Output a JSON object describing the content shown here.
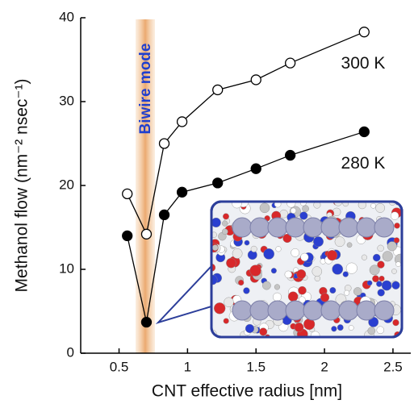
{
  "chart_data": {
    "type": "line",
    "x_label": "CNT effective radius [nm]",
    "y_label": "Methanol flow (nm⁻² nsec⁻¹)",
    "annotations": [
      "Biwire mode"
    ],
    "series": [
      {
        "name": "300 K",
        "color": "#000000",
        "marker": "open",
        "x": [
          0.56,
          0.7,
          0.83,
          0.96,
          1.22,
          1.5,
          1.75,
          2.29
        ],
        "values": [
          19,
          14.2,
          25,
          27.6,
          31.4,
          32.6,
          34.6,
          38.3
        ]
      },
      {
        "name": "280 K",
        "color": "#000000",
        "marker": "filled",
        "x": [
          0.56,
          0.7,
          0.83,
          0.96,
          1.22,
          1.5,
          1.75,
          2.29
        ],
        "values": [
          14,
          3.7,
          16.5,
          19.2,
          20.3,
          22,
          23.6,
          26.4
        ]
      }
    ],
    "xlim": [
      0.22,
      2.63
    ],
    "xticks": [
      0.5,
      1.0,
      1.5,
      2.0,
      2.5
    ],
    "ylim": [
      0,
      40
    ],
    "yticks": [
      0,
      10,
      20,
      30,
      40
    ]
  }
}
